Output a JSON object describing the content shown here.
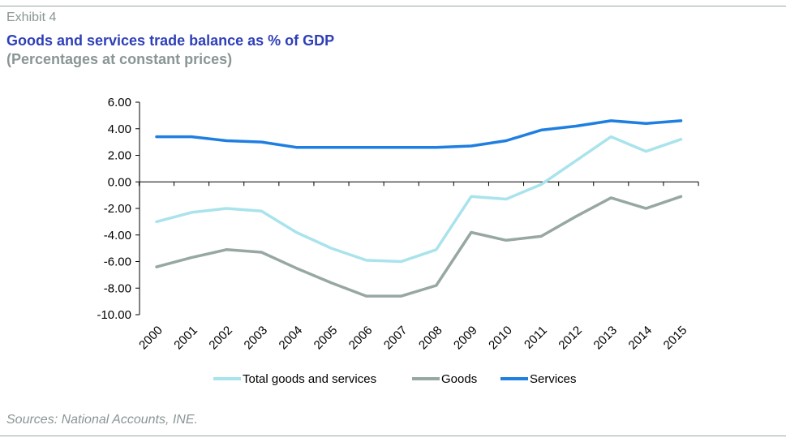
{
  "header": {
    "exhibit": "Exhibit 4",
    "title": "Goods and services trade balance as % of GDP",
    "subtitle": "(Percentages at constant prices)"
  },
  "footer": {
    "source": "Sources: National Accounts, INE."
  },
  "colors": {
    "title": "#2e3fb8",
    "muted": "#8a9595",
    "total": "#a9e3ec",
    "goods": "#97a7a4",
    "services": "#1e7fe0"
  },
  "chart_data": {
    "type": "line",
    "x": [
      "2000",
      "2001",
      "2002",
      "2003",
      "2004",
      "2005",
      "2006",
      "2007",
      "2008",
      "2009",
      "2010",
      "2011",
      "2012",
      "2013",
      "2014",
      "2015"
    ],
    "ylim": [
      -10,
      6
    ],
    "yticks": [
      "6.00",
      "4.00",
      "2.00",
      "0.00",
      "-2.00",
      "-4.00",
      "-6.00",
      "-8.00",
      "-10.00"
    ],
    "grid": false,
    "legend_position": "bottom",
    "series": [
      {
        "name": "Total goods and services",
        "color": "#a9e3ec",
        "values": [
          -3.0,
          -2.3,
          -2.0,
          -2.2,
          -3.8,
          -5.0,
          -5.9,
          -6.0,
          -5.1,
          -1.1,
          -1.3,
          -0.2,
          1.6,
          3.4,
          2.3,
          3.2
        ]
      },
      {
        "name": "Goods",
        "color": "#97a7a4",
        "values": [
          -6.4,
          -5.7,
          -5.1,
          -5.3,
          -6.5,
          -7.6,
          -8.6,
          -8.6,
          -7.8,
          -3.8,
          -4.4,
          -4.1,
          -2.6,
          -1.2,
          -2.0,
          -1.1
        ]
      },
      {
        "name": "Services",
        "color": "#1e7fe0",
        "values": [
          3.4,
          3.4,
          3.1,
          3.0,
          2.6,
          2.6,
          2.6,
          2.6,
          2.6,
          2.7,
          3.1,
          3.9,
          4.2,
          4.6,
          4.4,
          4.6
        ]
      }
    ]
  }
}
